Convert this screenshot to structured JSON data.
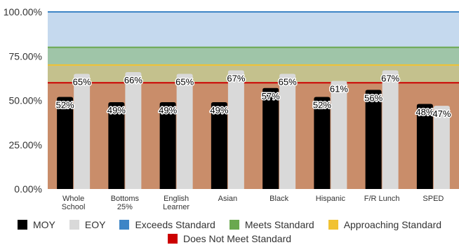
{
  "chart_data": {
    "type": "bar",
    "categories": [
      "Whole School",
      "Bottoms 25%",
      "English Learner",
      "Asian",
      "Black",
      "Hispanic",
      "F/R Lunch",
      "SPED"
    ],
    "category_lines": [
      [
        "Whole",
        "School"
      ],
      [
        "Bottoms",
        "25%"
      ],
      [
        "English",
        "Learner"
      ],
      [
        "Asian"
      ],
      [
        "Black"
      ],
      [
        "Hispanic"
      ],
      [
        "F/R Lunch"
      ],
      [
        "SPED"
      ]
    ],
    "series": [
      {
        "name": "MOY",
        "color": "#000000",
        "values": [
          52,
          49,
          49,
          49,
          57,
          52,
          56,
          48
        ],
        "labels": [
          "52%",
          "49%",
          "49%",
          "49%",
          "57%",
          "52%",
          "56%",
          "48%"
        ]
      },
      {
        "name": "EOY",
        "color": "#d9d9d9",
        "values": [
          65,
          66,
          65,
          67,
          65,
          61,
          67,
          47
        ],
        "labels": [
          "65%",
          "66%",
          "65%",
          "67%",
          "65%",
          "61%",
          "67%",
          "47%"
        ]
      }
    ],
    "bands": [
      {
        "name": "Exceeds Standard",
        "color": "#3d85c6",
        "fill": "#c5d9ee",
        "from": 80,
        "to": 100,
        "line": 100
      },
      {
        "name": "Meets Standard",
        "color": "#6aa84f",
        "fill": "#9fc5a8",
        "from": 70,
        "to": 80,
        "line": 80
      },
      {
        "name": "Approaching Standard",
        "color": "#f1c232",
        "fill": "#c4c18d",
        "from": 60,
        "to": 70,
        "line": 70
      },
      {
        "name": "Does Not Meet Standard",
        "color": "#cc0000",
        "fill": "#c98d6a",
        "from": 0,
        "to": 60,
        "line": 60
      }
    ],
    "y_ticks": [
      0,
      25,
      50,
      75,
      100
    ],
    "y_tick_labels": [
      "0.00%",
      "25.00%",
      "50.00%",
      "75.00%",
      "100.00%"
    ],
    "ylim": [
      0,
      100
    ],
    "legend_position": "bottom"
  }
}
